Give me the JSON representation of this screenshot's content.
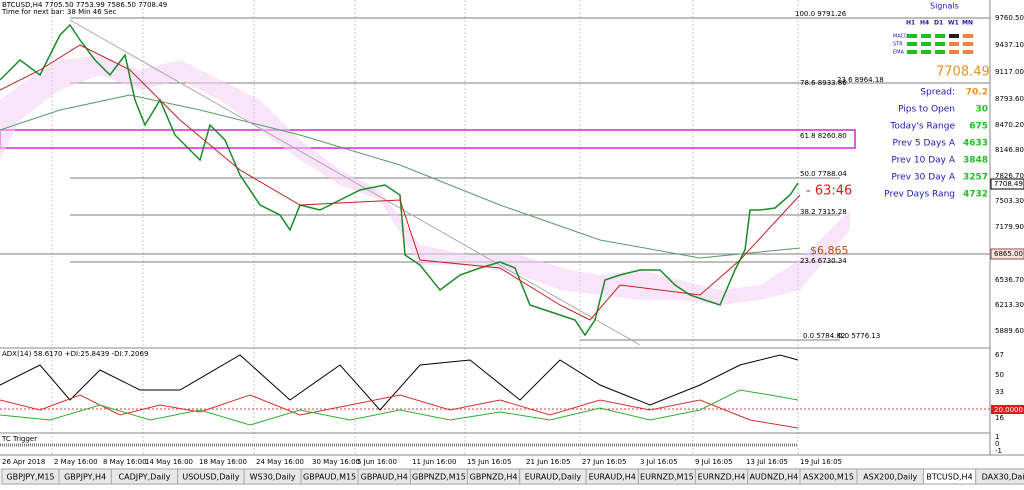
{
  "header": {
    "symbol_line": "BTCUSD,H4 7705.50 7753.99 7586.50 7708.49",
    "timer_line": "Time for next bar: 38 Min 46 Sec"
  },
  "price_axis": [
    "9760.50",
    "9437.10",
    "9117.00",
    "8793.60",
    "8470.20",
    "8146.80",
    "7826.70",
    "7503.30",
    "7179.90",
    "6536.70",
    "6213.30",
    "5889.60"
  ],
  "price_current": "7708.49",
  "price_marked": "6865.00",
  "fib_labels": [
    "100.0  9791.26",
    "78.6  8933.86",
    "23.6  8964.18",
    "61.8  8260.80",
    "50.0  7788.04",
    "38.2  7315.28",
    "23.6  6730.34",
    "0.0  5784.82",
    "0.0  5776.13"
  ],
  "countdown": "- 63:46",
  "level_note": "$6,865",
  "signals": {
    "title": "Signals",
    "timeframes": [
      "H1",
      "H4",
      "D1",
      "W1",
      "MN"
    ],
    "rows": [
      "MACD",
      "STR",
      "EMA"
    ]
  },
  "info": {
    "price": "7708.49",
    "rows": [
      [
        "Spread: ",
        "70.2"
      ],
      [
        "Pips to Open ",
        "30"
      ],
      [
        "Today's Range ",
        "675"
      ],
      [
        "Prev 5 Days A",
        "4633"
      ],
      [
        "Prev 10 Day A",
        "3848"
      ],
      [
        "Prev 30 Day A",
        "3257"
      ],
      [
        "Prev Days Rang",
        "4732"
      ]
    ]
  },
  "adx": {
    "label": "ADX(14) 58.6170 +DI:25.8439 -DI:7.2069",
    "axis": [
      "67",
      "50",
      "33",
      "16"
    ],
    "level": "20.0000"
  },
  "tc": {
    "label": "TC Trigger",
    "axis": [
      "1",
      "0",
      "-1"
    ]
  },
  "time_axis": [
    "26 Apr 2018",
    "2 May 16:00",
    "8 May 16:00",
    "14 May 16:00",
    "18 May 16:00",
    "24 May 16:00",
    "30 May 16:00",
    "5 Jun 16:00",
    "11 Jun 16:00",
    "15 Jun 16:05",
    "21 Jun 16:05",
    "27 Jun 16:05",
    "3 Jul 16:05",
    "9 Jul 16:05",
    "13 Jul 16:05",
    "19 Jul 16:05"
  ],
  "tabs": [
    "GBPJPY,M15",
    "GBPJPY,H4",
    "CADJPY,Daily",
    "USOUSD,Daily",
    "WS30,Daily",
    "GBPAUD,M15",
    "GBPAUD,H4",
    "GBPNZD,M15",
    "GBPNZD,H4",
    "EURAUD,Daily",
    "EURAUD,H4",
    "EURNZD,M15",
    "EURNZD,H4",
    "AUDNZD,H4",
    "ASX200,M15",
    "ASX200,Daily",
    "BTCUSD,H4",
    "DAX30,Daily"
  ],
  "active_tab": "BTCUSD,H4"
}
